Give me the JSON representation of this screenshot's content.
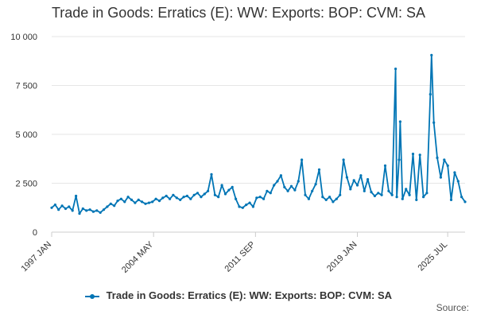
{
  "colors": {
    "series": "#0075b5",
    "grid": "#e6e6e6",
    "axis": "#cccccc",
    "text": "#333333"
  },
  "legend": {
    "label": "Trade in Goods: Erratics (E): WW: Exports: BOP: CVM: SA"
  },
  "source_label": "Source:",
  "chart_data": {
    "type": "line",
    "title": "Trade in Goods: Erratics (E): WW: Exports: BOP: CVM: SA",
    "ylim": [
      0,
      10000
    ],
    "y_ticks": [
      0,
      2500,
      5000,
      7500,
      10000
    ],
    "y_tick_labels": [
      "0",
      "2 500",
      "5 000",
      "7 500",
      "10 000"
    ],
    "x_tick_labels": [
      "1997 JAN",
      "2004 MAY",
      "2011 SEP",
      "2019 JAN",
      "2025 JUL"
    ],
    "x_tick_dates": [
      "1997-01",
      "2004-05",
      "2011-09",
      "2019-01",
      "2025-07"
    ],
    "grid": true,
    "legend_position": "bottom",
    "series": [
      {
        "name": "Trade in Goods: Erratics (E): WW: Exports: BOP: CVM: SA",
        "points": [
          [
            "1997-01",
            1250
          ],
          [
            "1997-04",
            1400
          ],
          [
            "1997-07",
            1150
          ],
          [
            "1997-10",
            1350
          ],
          [
            "1998-01",
            1200
          ],
          [
            "1998-04",
            1300
          ],
          [
            "1998-07",
            1100
          ],
          [
            "1998-10",
            1850
          ],
          [
            "1999-01",
            950
          ],
          [
            "1999-04",
            1200
          ],
          [
            "1999-07",
            1100
          ],
          [
            "1999-10",
            1150
          ],
          [
            "2000-01",
            1050
          ],
          [
            "2000-04",
            1100
          ],
          [
            "2000-07",
            1000
          ],
          [
            "2000-10",
            1150
          ],
          [
            "2001-01",
            1300
          ],
          [
            "2001-04",
            1450
          ],
          [
            "2001-07",
            1350
          ],
          [
            "2001-10",
            1600
          ],
          [
            "2002-01",
            1700
          ],
          [
            "2002-04",
            1550
          ],
          [
            "2002-07",
            1800
          ],
          [
            "2002-10",
            1650
          ],
          [
            "2003-01",
            1500
          ],
          [
            "2003-04",
            1650
          ],
          [
            "2003-07",
            1550
          ],
          [
            "2003-10",
            1450
          ],
          [
            "2004-01",
            1500
          ],
          [
            "2004-04",
            1550
          ],
          [
            "2004-07",
            1700
          ],
          [
            "2004-10",
            1600
          ],
          [
            "2005-01",
            1750
          ],
          [
            "2005-04",
            1850
          ],
          [
            "2005-07",
            1700
          ],
          [
            "2005-10",
            1900
          ],
          [
            "2006-01",
            1750
          ],
          [
            "2006-04",
            1650
          ],
          [
            "2006-07",
            1800
          ],
          [
            "2006-10",
            1850
          ],
          [
            "2007-01",
            1700
          ],
          [
            "2007-04",
            1900
          ],
          [
            "2007-07",
            2000
          ],
          [
            "2007-10",
            1800
          ],
          [
            "2008-01",
            1950
          ],
          [
            "2008-04",
            2100
          ],
          [
            "2008-07",
            2950
          ],
          [
            "2008-10",
            1900
          ],
          [
            "2009-01",
            1800
          ],
          [
            "2009-04",
            2400
          ],
          [
            "2009-07",
            1950
          ],
          [
            "2009-10",
            2150
          ],
          [
            "2010-01",
            2300
          ],
          [
            "2010-04",
            1700
          ],
          [
            "2010-07",
            1300
          ],
          [
            "2010-10",
            1250
          ],
          [
            "2011-01",
            1400
          ],
          [
            "2011-04",
            1500
          ],
          [
            "2011-07",
            1300
          ],
          [
            "2011-10",
            1750
          ],
          [
            "2012-01",
            1800
          ],
          [
            "2012-04",
            1700
          ],
          [
            "2012-07",
            2100
          ],
          [
            "2012-10",
            2000
          ],
          [
            "2013-01",
            2400
          ],
          [
            "2013-04",
            2600
          ],
          [
            "2013-07",
            2900
          ],
          [
            "2013-10",
            2300
          ],
          [
            "2014-01",
            2100
          ],
          [
            "2014-04",
            2350
          ],
          [
            "2014-07",
            2150
          ],
          [
            "2014-10",
            2600
          ],
          [
            "2015-01",
            3700
          ],
          [
            "2015-04",
            1900
          ],
          [
            "2015-07",
            1700
          ],
          [
            "2015-10",
            2100
          ],
          [
            "2016-01",
            2450
          ],
          [
            "2016-04",
            3200
          ],
          [
            "2016-07",
            1800
          ],
          [
            "2016-10",
            1650
          ],
          [
            "2017-01",
            1800
          ],
          [
            "2017-04",
            1550
          ],
          [
            "2017-07",
            1700
          ],
          [
            "2017-10",
            1900
          ],
          [
            "2018-01",
            3700
          ],
          [
            "2018-04",
            2800
          ],
          [
            "2018-07",
            2200
          ],
          [
            "2018-10",
            2650
          ],
          [
            "2019-01",
            2400
          ],
          [
            "2019-04",
            2900
          ],
          [
            "2019-07",
            2100
          ],
          [
            "2019-10",
            2700
          ],
          [
            "2020-01",
            2050
          ],
          [
            "2020-04",
            1850
          ],
          [
            "2020-07",
            2000
          ],
          [
            "2020-10",
            1900
          ],
          [
            "2021-01",
            3400
          ],
          [
            "2021-04",
            2100
          ],
          [
            "2021-07",
            1900
          ],
          [
            "2021-10",
            8350
          ],
          [
            "2021-11",
            1800
          ],
          [
            "2022-01",
            3700
          ],
          [
            "2022-02",
            5650
          ],
          [
            "2022-04",
            1700
          ],
          [
            "2022-07",
            2200
          ],
          [
            "2022-10",
            1900
          ],
          [
            "2023-01",
            4000
          ],
          [
            "2023-04",
            1650
          ],
          [
            "2023-07",
            3950
          ],
          [
            "2023-10",
            1800
          ],
          [
            "2024-01",
            2000
          ],
          [
            "2024-04",
            7050
          ],
          [
            "2024-05",
            9050
          ],
          [
            "2024-07",
            5600
          ],
          [
            "2024-10",
            3800
          ],
          [
            "2025-01",
            2800
          ],
          [
            "2025-04",
            3700
          ],
          [
            "2025-07",
            3400
          ],
          [
            "2025-10",
            1650
          ],
          [
            "2026-01",
            3050
          ],
          [
            "2026-04",
            2600
          ],
          [
            "2026-07",
            1800
          ],
          [
            "2026-10",
            1550
          ]
        ]
      }
    ]
  }
}
